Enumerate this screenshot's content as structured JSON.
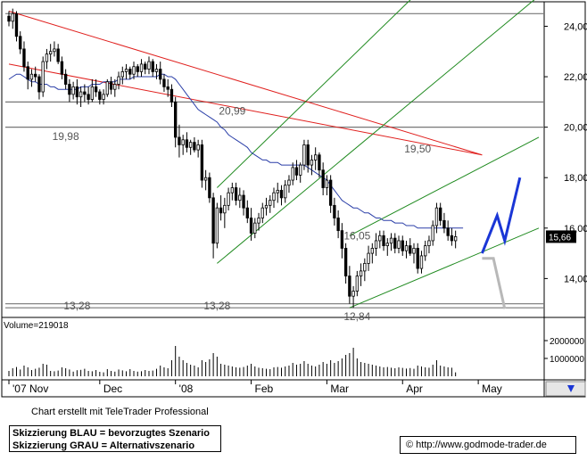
{
  "chart_data": {
    "type": "candlestick",
    "price_axis": {
      "ticks": [
        "24,00",
        "22,00",
        "20,00",
        "18,00",
        "16,00",
        "14,00"
      ],
      "tick_values": [
        24,
        22,
        20,
        18,
        16,
        14
      ],
      "ylim": [
        12.6,
        24.9
      ],
      "last_price_label": "15,66",
      "last_price": 15.66
    },
    "x_axis": {
      "labels": [
        "'07 Nov",
        "Dec",
        "'08",
        "Feb",
        "Mar",
        "Apr",
        "May"
      ],
      "label_index": [
        0,
        24,
        44,
        64,
        84,
        104,
        124
      ]
    },
    "annotations": [
      {
        "text": "20,99",
        "value": 20.99,
        "index": 59
      },
      {
        "text": "19,98",
        "value": 19.98,
        "index": 15
      },
      {
        "text": "19,50",
        "value": 19.5,
        "index": 108
      },
      {
        "text": "16,05",
        "value": 16.05,
        "index": 92
      },
      {
        "text": "13,28",
        "value": 13.28,
        "index": 55
      },
      {
        "text": "13,28",
        "value": 13.28,
        "index": 18
      },
      {
        "text": "12,84",
        "value": 12.84,
        "index": 92
      }
    ],
    "horizontal_levels": [
      24.5,
      21.0,
      20.0,
      13.0,
      12.84
    ],
    "moving_average": [
      21.9,
      22.0,
      22.1,
      22.1,
      22.0,
      21.9,
      21.8,
      21.8,
      21.7,
      21.7,
      21.7,
      21.6,
      21.6,
      21.5,
      21.5,
      21.5,
      21.5,
      21.5,
      21.5,
      21.6,
      21.6,
      21.6,
      21.7,
      21.7,
      21.7,
      21.8,
      21.8,
      21.8,
      21.8,
      21.9,
      21.9,
      21.9,
      21.9,
      22.0,
      22.0,
      22.0,
      22.0,
      22.0,
      22.0,
      22.0,
      22.1,
      22.1,
      22.0,
      22.0,
      21.9,
      21.7,
      21.5,
      21.3,
      21.1,
      20.9,
      20.7,
      20.6,
      20.5,
      20.4,
      20.3,
      20.2,
      20.0,
      19.9,
      19.7,
      19.6,
      19.5,
      19.4,
      19.3,
      19.2,
      19.0,
      18.9,
      18.8,
      18.7,
      18.7,
      18.6,
      18.6,
      18.6,
      18.5,
      18.5,
      18.5,
      18.5,
      18.5,
      18.5,
      18.5,
      18.4,
      18.3,
      18.2,
      18.1,
      18.0,
      17.9,
      17.7,
      17.5,
      17.3,
      17.1,
      17.0,
      16.9,
      16.8,
      16.8,
      16.7,
      16.6,
      16.6,
      16.5,
      16.4,
      16.4,
      16.3,
      16.3,
      16.3,
      16.2,
      16.2,
      16.2,
      16.1,
      16.1,
      16.1,
      16.0,
      16.0,
      16.0,
      16.0,
      16.0,
      16.0,
      16.0,
      16.0,
      16.0,
      16.0,
      16.0,
      16.0,
      16.0
    ],
    "ohlc": [
      [
        24.4,
        24.6,
        24.0,
        24.2
      ],
      [
        24.2,
        24.7,
        23.9,
        24.5
      ],
      [
        24.5,
        24.6,
        23.4,
        23.6
      ],
      [
        23.6,
        23.8,
        22.9,
        23.1
      ],
      [
        23.1,
        23.4,
        22.2,
        22.4
      ],
      [
        22.4,
        22.6,
        21.5,
        21.9
      ],
      [
        21.9,
        22.3,
        21.6,
        22.1
      ],
      [
        22.1,
        22.4,
        21.8,
        22.0
      ],
      [
        22.0,
        22.1,
        21.1,
        21.4
      ],
      [
        21.4,
        22.8,
        21.2,
        22.6
      ],
      [
        22.6,
        23.1,
        22.3,
        22.9
      ],
      [
        22.9,
        23.3,
        22.6,
        23.0
      ],
      [
        23.0,
        23.4,
        22.8,
        23.1
      ],
      [
        23.1,
        23.3,
        22.5,
        22.6
      ],
      [
        22.6,
        22.8,
        21.9,
        22.1
      ],
      [
        22.1,
        22.3,
        21.5,
        21.7
      ],
      [
        21.7,
        21.9,
        21.0,
        21.3
      ],
      [
        21.3,
        21.8,
        21.1,
        21.6
      ],
      [
        21.6,
        21.9,
        20.9,
        21.2
      ],
      [
        21.2,
        21.6,
        20.8,
        21.4
      ],
      [
        21.4,
        21.7,
        21.0,
        21.3
      ],
      [
        21.3,
        21.6,
        20.9,
        21.1
      ],
      [
        21.1,
        21.9,
        21.0,
        21.6
      ],
      [
        21.6,
        21.9,
        21.2,
        21.4
      ],
      [
        21.4,
        21.5,
        20.9,
        21.1
      ],
      [
        21.1,
        21.5,
        20.9,
        21.3
      ],
      [
        21.3,
        21.9,
        21.2,
        21.8
      ],
      [
        21.8,
        22.0,
        21.3,
        21.5
      ],
      [
        21.5,
        21.9,
        21.2,
        21.7
      ],
      [
        21.7,
        22.2,
        21.5,
        22.0
      ],
      [
        22.0,
        22.4,
        21.7,
        22.2
      ],
      [
        22.2,
        22.5,
        21.9,
        22.3
      ],
      [
        22.3,
        22.4,
        21.9,
        22.1
      ],
      [
        22.1,
        22.6,
        21.9,
        22.4
      ],
      [
        22.4,
        22.5,
        22.0,
        22.2
      ],
      [
        22.2,
        22.7,
        22.0,
        22.5
      ],
      [
        22.5,
        22.6,
        22.1,
        22.3
      ],
      [
        22.3,
        22.8,
        22.1,
        22.6
      ],
      [
        22.6,
        22.7,
        22.0,
        22.2
      ],
      [
        22.2,
        22.5,
        21.9,
        22.3
      ],
      [
        22.3,
        22.6,
        21.7,
        21.9
      ],
      [
        21.9,
        22.1,
        21.4,
        21.6
      ],
      [
        21.6,
        21.9,
        21.2,
        21.5
      ],
      [
        21.5,
        21.7,
        20.8,
        21.0
      ],
      [
        21.0,
        21.2,
        19.2,
        19.6
      ],
      [
        19.6,
        20.1,
        18.8,
        19.3
      ],
      [
        19.3,
        19.7,
        18.9,
        19.5
      ],
      [
        19.5,
        19.8,
        19.0,
        19.2
      ],
      [
        19.2,
        19.5,
        18.9,
        19.4
      ],
      [
        19.4,
        19.6,
        19.0,
        19.1
      ],
      [
        19.1,
        19.5,
        18.8,
        19.3
      ],
      [
        19.3,
        19.5,
        17.6,
        17.9
      ],
      [
        17.9,
        18.3,
        17.5,
        18.0
      ],
      [
        18.0,
        18.2,
        17.0,
        17.2
      ],
      [
        17.2,
        17.4,
        14.8,
        15.4
      ],
      [
        15.4,
        17.0,
        15.2,
        16.8
      ],
      [
        16.8,
        17.3,
        16.3,
        16.6
      ],
      [
        16.6,
        17.2,
        16.0,
        16.9
      ],
      [
        16.9,
        17.6,
        16.7,
        17.4
      ],
      [
        17.4,
        17.8,
        17.1,
        17.6
      ],
      [
        17.6,
        17.8,
        16.9,
        17.1
      ],
      [
        17.1,
        17.6,
        16.8,
        17.3
      ],
      [
        17.3,
        17.5,
        16.5,
        16.8
      ],
      [
        16.8,
        17.1,
        16.2,
        16.4
      ],
      [
        16.4,
        16.8,
        15.5,
        15.8
      ],
      [
        15.8,
        16.4,
        15.6,
        16.2
      ],
      [
        16.2,
        16.6,
        15.9,
        16.4
      ],
      [
        16.4,
        17.0,
        16.2,
        16.8
      ],
      [
        16.8,
        17.2,
        16.5,
        16.9
      ],
      [
        16.9,
        17.3,
        16.6,
        17.1
      ],
      [
        17.1,
        17.6,
        16.8,
        17.4
      ],
      [
        17.4,
        17.8,
        17.0,
        17.5
      ],
      [
        17.5,
        17.7,
        16.9,
        17.2
      ],
      [
        17.2,
        17.9,
        17.0,
        17.7
      ],
      [
        17.7,
        18.1,
        17.4,
        17.9
      ],
      [
        17.9,
        18.6,
        17.7,
        18.4
      ],
      [
        18.4,
        18.7,
        17.9,
        18.1
      ],
      [
        18.1,
        18.6,
        17.8,
        18.5
      ],
      [
        18.5,
        19.5,
        18.3,
        19.3
      ],
      [
        19.3,
        19.5,
        18.2,
        18.5
      ],
      [
        18.5,
        18.9,
        18.1,
        18.7
      ],
      [
        18.7,
        19.2,
        18.3,
        18.9
      ],
      [
        18.9,
        19.0,
        18.0,
        18.3
      ],
      [
        18.3,
        18.6,
        17.3,
        17.6
      ],
      [
        17.6,
        18.1,
        17.3,
        17.9
      ],
      [
        17.9,
        18.1,
        16.6,
        16.9
      ],
      [
        16.9,
        17.2,
        16.1,
        16.4
      ],
      [
        16.4,
        16.7,
        15.6,
        15.9
      ],
      [
        15.9,
        16.2,
        14.8,
        15.2
      ],
      [
        15.2,
        15.4,
        13.8,
        14.1
      ],
      [
        14.1,
        14.5,
        13.0,
        13.3
      ],
      [
        13.3,
        13.7,
        12.84,
        13.5
      ],
      [
        13.5,
        14.3,
        13.3,
        14.1
      ],
      [
        14.1,
        14.6,
        13.7,
        14.3
      ],
      [
        14.3,
        14.8,
        13.9,
        14.6
      ],
      [
        14.6,
        15.3,
        14.3,
        15.0
      ],
      [
        15.0,
        15.4,
        14.6,
        15.2
      ],
      [
        15.2,
        15.8,
        14.9,
        15.5
      ],
      [
        15.5,
        15.9,
        15.2,
        15.7
      ],
      [
        15.7,
        15.9,
        15.1,
        15.3
      ],
      [
        15.3,
        15.6,
        14.9,
        15.4
      ],
      [
        15.4,
        15.8,
        15.1,
        15.6
      ],
      [
        15.6,
        15.8,
        15.0,
        15.2
      ],
      [
        15.2,
        15.7,
        15.0,
        15.5
      ],
      [
        15.5,
        15.7,
        14.9,
        15.1
      ],
      [
        15.1,
        15.5,
        14.8,
        15.3
      ],
      [
        15.3,
        15.6,
        14.9,
        15.0
      ],
      [
        15.0,
        15.4,
        14.6,
        15.2
      ],
      [
        15.2,
        15.4,
        14.2,
        14.4
      ],
      [
        14.4,
        15.1,
        14.2,
        14.9
      ],
      [
        14.9,
        15.5,
        14.7,
        15.3
      ],
      [
        15.3,
        15.7,
        15.0,
        15.5
      ],
      [
        15.5,
        16.3,
        15.3,
        16.1
      ],
      [
        16.1,
        17.0,
        15.8,
        16.8
      ],
      [
        16.8,
        17.0,
        16.1,
        16.3
      ],
      [
        16.3,
        16.6,
        15.8,
        16.0
      ],
      [
        16.0,
        16.3,
        15.5,
        15.7
      ],
      [
        15.7,
        16.0,
        15.3,
        15.5
      ],
      [
        15.5,
        15.9,
        15.2,
        15.66
      ]
    ],
    "trendlines": {
      "red": [
        [
          0,
          24.6,
          125,
          18.9
        ],
        [
          0,
          22.5,
          125,
          18.9
        ]
      ],
      "green": [
        [
          55,
          14.6,
          140,
          25.2
        ],
        [
          55,
          17.6,
          140,
          30.0
        ],
        [
          90,
          12.84,
          140,
          16.0
        ],
        [
          90,
          15.7,
          140,
          19.6
        ]
      ]
    },
    "scenario_blue": [
      [
        125,
        15.0
      ],
      [
        129,
        16.5
      ],
      [
        131,
        15.5
      ],
      [
        135,
        18.0
      ]
    ],
    "scenario_grey": [
      [
        125,
        14.8
      ],
      [
        128,
        14.8
      ],
      [
        131,
        12.8
      ]
    ],
    "volume": {
      "label": "Volume=219018",
      "ticks": [
        "2000000",
        "1000000"
      ],
      "tick_values": [
        2000000,
        1000000
      ],
      "values": [
        300000,
        450000,
        520000,
        380000,
        600000,
        500000,
        350000,
        420000,
        480000,
        700000,
        650000,
        300000,
        280000,
        320000,
        500000,
        450000,
        380000,
        260000,
        340000,
        360000,
        420000,
        300000,
        280000,
        350000,
        250000,
        220000,
        400000,
        300000,
        260000,
        380000,
        330000,
        280000,
        400000,
        300000,
        260000,
        280000,
        350000,
        300000,
        320000,
        420000,
        600000,
        500000,
        450000,
        900000,
        1700000,
        1100000,
        900000,
        750000,
        650000,
        600000,
        500000,
        900000,
        800000,
        950000,
        1300000,
        1100000,
        700000,
        650000,
        600000,
        550000,
        500000,
        480000,
        520000,
        600000,
        700000,
        550000,
        480000,
        450000,
        420000,
        400000,
        500000,
        520000,
        480000,
        550000,
        600000,
        750000,
        650000,
        700000,
        850000,
        700000,
        600000,
        550000,
        650000,
        800000,
        700000,
        900000,
        750000,
        850000,
        1000000,
        1200000,
        1300000,
        1600000,
        1000000,
        800000,
        750000,
        700000,
        650000,
        600000,
        550000,
        500000,
        520000,
        480000,
        450000,
        500000,
        470000,
        430000,
        460000,
        420000,
        600000,
        550000,
        500000,
        480000,
        650000,
        900000,
        600000,
        550000,
        500000,
        480000,
        219018
      ]
    }
  },
  "page": {
    "credit": "Chart erstellt mit TeleTrader Professional",
    "legend_blue": "Skizzierung BLAU = bevorzugtes Szenario",
    "legend_grey": "Skizzierung GRAU = Alternativszenario",
    "source": "© http://www.godmode-trader.de"
  },
  "colors": {
    "up": "#ffffff",
    "down": "#000000",
    "moving_average": "#2b3fa8",
    "red_line": "#e0201e",
    "green_line": "#1f8a1f",
    "blue_scenario": "#1a36d6",
    "grey_scenario": "#b8b8b8",
    "level": "#777777"
  },
  "icons": [
    "arrow-scroll-icon"
  ]
}
